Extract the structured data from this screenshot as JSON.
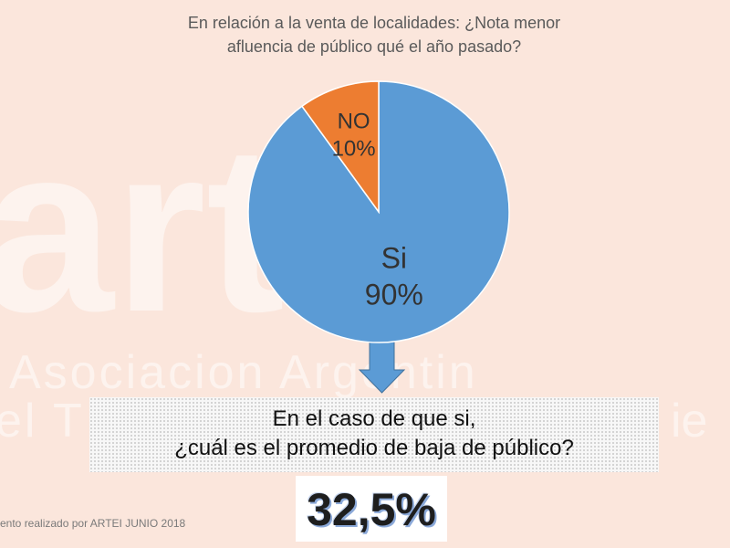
{
  "title": {
    "line1": "En relación a la venta de localidades: ¿Nota menor",
    "line2": "afluencia de público qué el año pasado?"
  },
  "chart_data": {
    "type": "pie",
    "slices": [
      {
        "label": "Si",
        "value": 90,
        "value_label": "90%",
        "color": "#5b9bd5"
      },
      {
        "label": "NO",
        "value": 10,
        "value_label": "10%",
        "color": "#ed7d31"
      }
    ]
  },
  "question": {
    "line1": "En el caso de que si,",
    "line2": "¿cuál es el promedio de baja de público?"
  },
  "answer": "32,5%",
  "footer": "ento realizado por ARTEI JUNIO 2018",
  "watermark": {
    "logo": "arte",
    "line1": "Asociacion Argentin",
    "line2": "el T                 ie"
  },
  "colors": {
    "background": "#fbe6dc",
    "arrow": "#5b9bd5"
  }
}
